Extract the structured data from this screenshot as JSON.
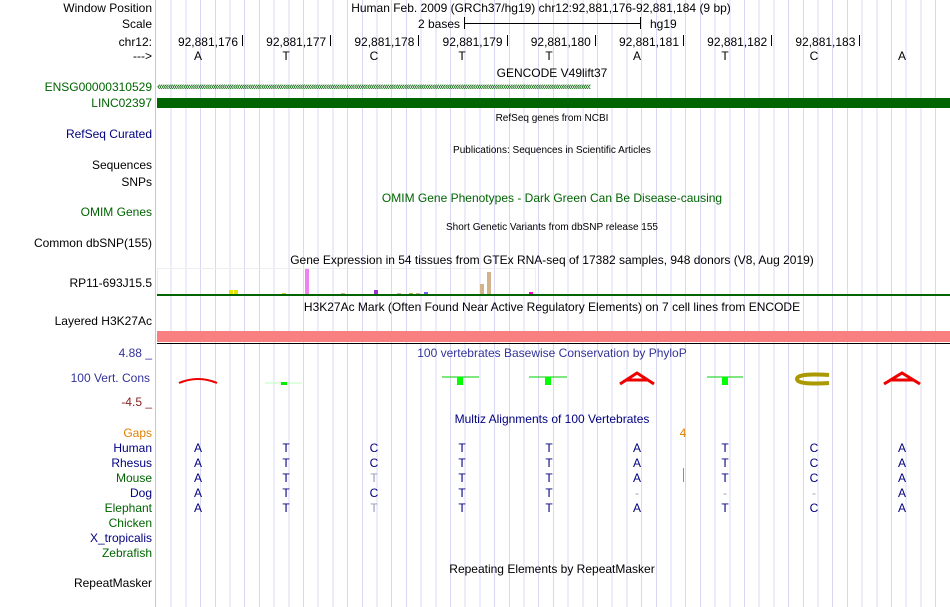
{
  "labels": {
    "window_position": "Window Position",
    "scale": "Scale",
    "chr": "chr12:",
    "strand": "--->",
    "gene_id": "ENSG00000310529",
    "gene_name": "LINC02397",
    "refseq": "RefSeq Curated",
    "sequences": "Sequences",
    "snps": "SNPs",
    "omim": "OMIM Genes",
    "dbsnp": "Common dbSNP(155)",
    "gtex_gene": "RP11-693J15.5",
    "h3k27ac": "Layered H3K27Ac",
    "cons_max": "4.88 _",
    "cons": "100 Vert. Cons",
    "cons_min": "-4.5 _",
    "gaps": "Gaps"
  },
  "header": {
    "title": "Human Feb. 2009 (GRCh37/hg19)   chr12:92,881,176-92,881,184 (9 bp)",
    "scale_label": "2 bases",
    "assembly": "hg19"
  },
  "positions": [
    "92,881,176",
    "92,881,177",
    "92,881,178",
    "92,881,179",
    "92,881,180",
    "92,881,181",
    "92,881,182",
    "92,881,183"
  ],
  "bases": [
    "A",
    "T",
    "C",
    "T",
    "T",
    "A",
    "T",
    "C",
    "A"
  ],
  "tracks": {
    "gencode": "GENCODE V49lift37",
    "refseq": "RefSeq genes from NCBI",
    "pubs": "Publications: Sequences in Scientific Articles",
    "omim": "OMIM Gene Phenotypes - Dark Green Can Be Disease-causing",
    "dbsnp": "Short Genetic Variants from dbSNP release 155",
    "gtex": "Gene Expression in 54 tissues from GTEx RNA-seq of 17382 samples, 948 donors (V8, Aug 2019)",
    "h3k27ac": "H3K27Ac Mark (Often Found Near Active Regulatory Elements) on 7 cell lines from ENCODE",
    "phylop": "100 vertebrates Basewise Conservation by PhyloP",
    "multiz": "Multiz Alignments of 100 Vertebrates",
    "rmsk": "Repeating Elements by RepeatMasker",
    "rmsk_label": "RepeatMasker",
    "gap_count": "4"
  },
  "gtex_values": [
    {
      "v": 4,
      "c": "#e5e500"
    },
    {
      "v": 4,
      "c": "#e5e500"
    },
    {
      "v": 1,
      "c": "#cccc33"
    },
    {
      "v": 25,
      "c": "#ee82ee"
    },
    {
      "v": 1,
      "c": "#d2b48c"
    },
    {
      "v": 4,
      "c": "#9933cc"
    },
    {
      "v": 1,
      "c": "#d2b48c"
    },
    {
      "v": 1,
      "c": "#99bb33"
    },
    {
      "v": 1,
      "c": "#d2b48c"
    },
    {
      "v": 2,
      "c": "#6666ee"
    },
    {
      "v": 10,
      "c": "#d2b48c"
    },
    {
      "v": 22,
      "c": "#d2b48c"
    },
    {
      "v": 2,
      "c": "#ff00cc"
    }
  ],
  "species": [
    {
      "name": "Human",
      "bases": [
        "A",
        "T",
        "C",
        "T",
        "T",
        "A",
        "T",
        "C",
        "A"
      ]
    },
    {
      "name": "Rhesus",
      "bases": [
        "A",
        "T",
        "C",
        "T",
        "T",
        "A",
        "T",
        "C",
        "A"
      ]
    },
    {
      "name": "Mouse",
      "bases": [
        "A",
        "T",
        "T",
        "T",
        "T",
        "A",
        "T",
        "C",
        "A"
      ]
    },
    {
      "name": "Dog",
      "bases": [
        "A",
        "T",
        "C",
        "T",
        "T",
        "-",
        "-",
        "-",
        "A"
      ]
    },
    {
      "name": "Elephant",
      "bases": [
        "A",
        "T",
        "T",
        "T",
        "T",
        "A",
        "T",
        "C",
        "A"
      ]
    },
    {
      "name": "Chicken",
      "bases": []
    },
    {
      "name": "X_tropicalis",
      "bases": []
    },
    {
      "name": "Zebrafish",
      "bases": []
    }
  ],
  "colors": {
    "gene": "#006400",
    "h3k27ac": "#f88080",
    "phylop_title": "#33339a",
    "gaps": "#e08000"
  }
}
